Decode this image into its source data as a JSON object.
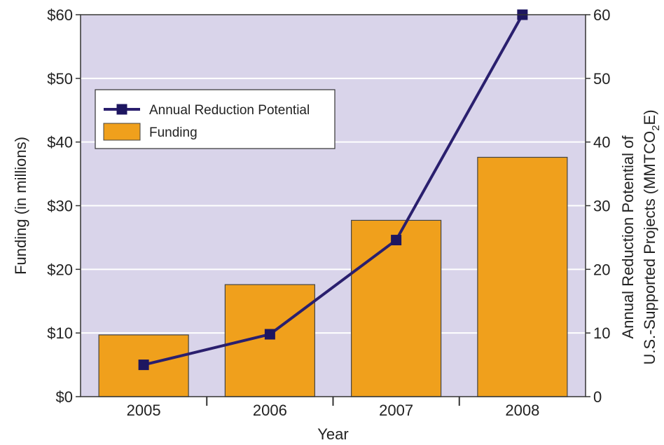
{
  "chart_data": {
    "type": "bar",
    "categories": [
      "2005",
      "2006",
      "2007",
      "2008"
    ],
    "series": [
      {
        "name": "Funding",
        "kind": "bar",
        "axis": "left",
        "values": [
          9.7,
          17.6,
          27.7,
          37.6
        ]
      },
      {
        "name": "Annual Reduction Potential",
        "kind": "line",
        "axis": "right",
        "values": [
          5,
          9.8,
          24.6,
          60
        ]
      }
    ],
    "xlabel": "Year",
    "ylabel": "Funding (in millions)",
    "y2label_line1": "Annual Reduction Potential of",
    "y2label_line2_prefix": "U.S.-Supported Projects (MMTCO",
    "y2label_line2_sub": "2",
    "y2label_line2_suffix": "E)",
    "ylim": [
      0,
      60
    ],
    "y2lim": [
      0,
      60
    ],
    "yticks": [
      "$0",
      "$10",
      "$20",
      "$30",
      "$40",
      "$50",
      "$60"
    ],
    "y2ticks": [
      "0",
      "10",
      "20",
      "30",
      "40",
      "50",
      "60"
    ],
    "grid": true,
    "legend_position": "top-left",
    "colors": {
      "plot_bg": "#d9d4ea",
      "grid": "#ffffff",
      "bar": "#f0a01c",
      "bar_edge": "#444444",
      "line": "#2a1f6e",
      "marker": "#1d1660"
    }
  }
}
